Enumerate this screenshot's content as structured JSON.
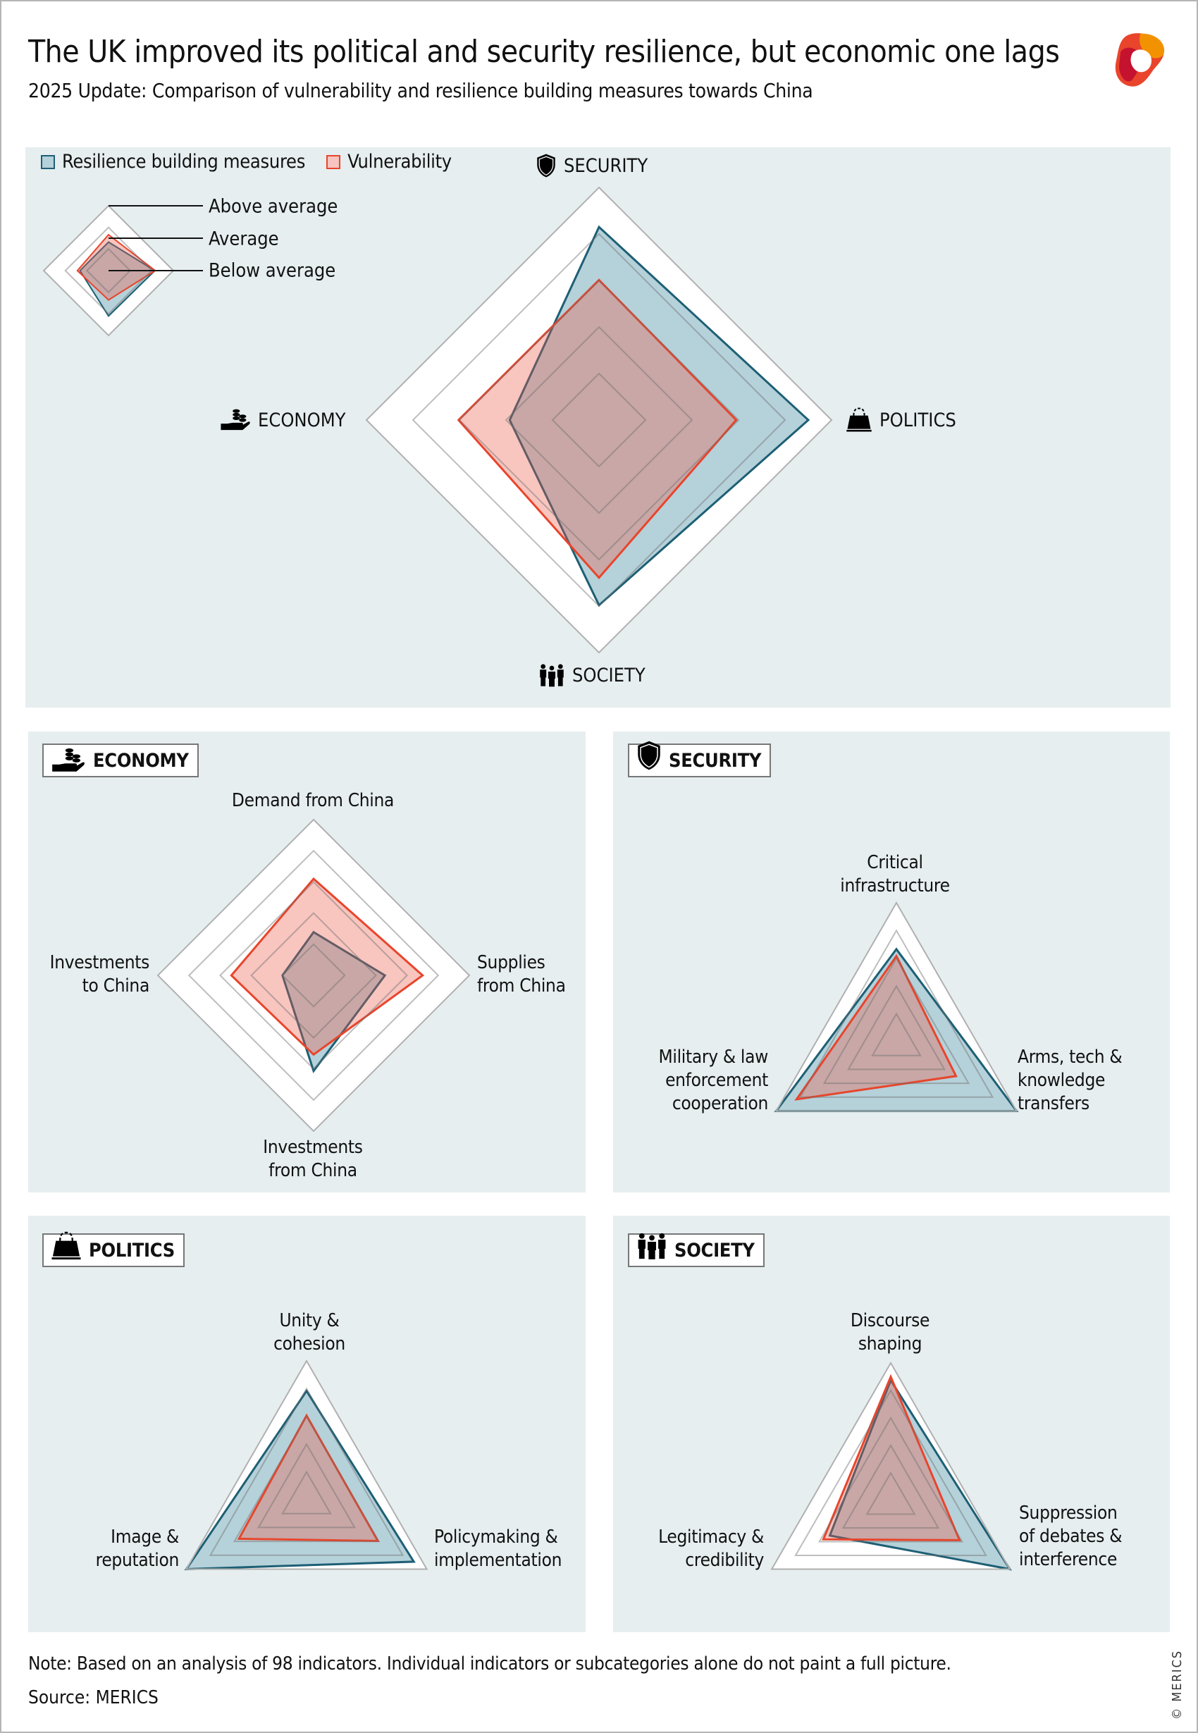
{
  "header": {
    "title": "The UK improved its political and security resilience, but economic one lags",
    "subtitle": "2025 Update: Comparison of vulnerability and resilience building measures towards China",
    "logo": "MERICS"
  },
  "legend": {
    "resilience": "Resilience building measures",
    "vulnerability": "Vulnerability"
  },
  "scale_labels": [
    "Above average",
    "Average",
    "Below average"
  ],
  "colors": {
    "resilience_stroke": "#1d5f75",
    "resilience_fill": "#5b98ab",
    "vulnerability_stroke": "#e8452c",
    "vulnerability_fill": "#ea5a48",
    "panel_bg": "#e6eef0",
    "grid": "#b0b0b0"
  },
  "icons": {
    "economy": "hand-coins-icon",
    "security": "shield-icon",
    "politics": "ballot-bag-icon",
    "society": "people-icon"
  },
  "footer": {
    "note": "Note: Based on an analysis of 98 indicators. Individual indicators or subcategories alone do not paint a full picture.",
    "source": "Source: MERICS",
    "copyright": "© MERICS"
  },
  "chart_data": [
    {
      "id": "overview",
      "type": "radar",
      "scale": [
        0,
        5
      ],
      "levels": 5,
      "axes": [
        "SECURITY",
        "POLITICS",
        "SOCIETY",
        "ECONOMY"
      ],
      "series": [
        {
          "name": "Resilience building measures",
          "values": [
            4.15,
            4.5,
            3.98,
            1.92
          ]
        },
        {
          "name": "Vulnerability",
          "values": [
            3.01,
            2.95,
            3.39,
            3.02
          ]
        }
      ]
    },
    {
      "id": "legend-example",
      "type": "radar",
      "scale": [
        0,
        5
      ],
      "levels": 3,
      "axes": [
        "",
        "",
        "",
        ""
      ],
      "series": [
        {
          "name": "Resilience building measures",
          "values": [
            2.2,
            3.57,
            3.5,
            2.2
          ]
        },
        {
          "name": "Vulnerability",
          "values": [
            2.77,
            3.6,
            2.26,
            2.4
          ]
        }
      ]
    },
    {
      "id": "economy",
      "title": "ECONOMY",
      "type": "radar",
      "scale": [
        0,
        5
      ],
      "levels": 5,
      "axes": [
        "Demand from China",
        "Supplies\nfrom China",
        "Investments\nfrom China",
        "Investments\nto China"
      ],
      "series": [
        {
          "name": "Resilience building measures",
          "values": [
            1.39,
            2.29,
            3.07,
            1.0
          ]
        },
        {
          "name": "Vulnerability",
          "values": [
            3.1,
            3.5,
            2.54,
            2.64
          ]
        }
      ]
    },
    {
      "id": "security",
      "title": "SECURITY",
      "type": "radar",
      "scale": [
        0,
        5
      ],
      "levels": 5,
      "axes": [
        "Critical\ninfrastructure",
        "Arms, tech &\nknowledge\ntransfers",
        "Military & law\nenforcement\ncooperation"
      ],
      "series": [
        {
          "name": "Resilience building measures",
          "values": [
            3.33,
            5.0,
            5.0
          ]
        },
        {
          "name": "Vulnerability",
          "values": [
            3.08,
            2.48,
            4.15
          ]
        }
      ]
    },
    {
      "id": "politics",
      "title": "POLITICS",
      "type": "radar",
      "scale": [
        0,
        5
      ],
      "levels": 5,
      "axes": [
        "Unity &\ncohesion",
        "Policymaking &\nimplementation",
        "Image &\nreputation"
      ],
      "series": [
        {
          "name": "Resilience building measures",
          "values": [
            3.92,
            4.46,
            5.0
          ]
        },
        {
          "name": "Vulnerability",
          "values": [
            3.03,
            2.97,
            2.81
          ]
        }
      ]
    },
    {
      "id": "society",
      "title": "SOCIETY",
      "type": "radar",
      "scale": [
        0,
        5
      ],
      "levels": 5,
      "axes": [
        "Discourse\nshaping",
        "Suppression\nof debates &\ninterference",
        "Legitimacy &\ncredibility"
      ],
      "series": [
        {
          "name": "Resilience building measures",
          "values": [
            4.37,
            5.0,
            2.56
          ]
        },
        {
          "name": "Vulnerability",
          "values": [
            4.5,
            2.89,
            2.83
          ]
        }
      ]
    }
  ]
}
